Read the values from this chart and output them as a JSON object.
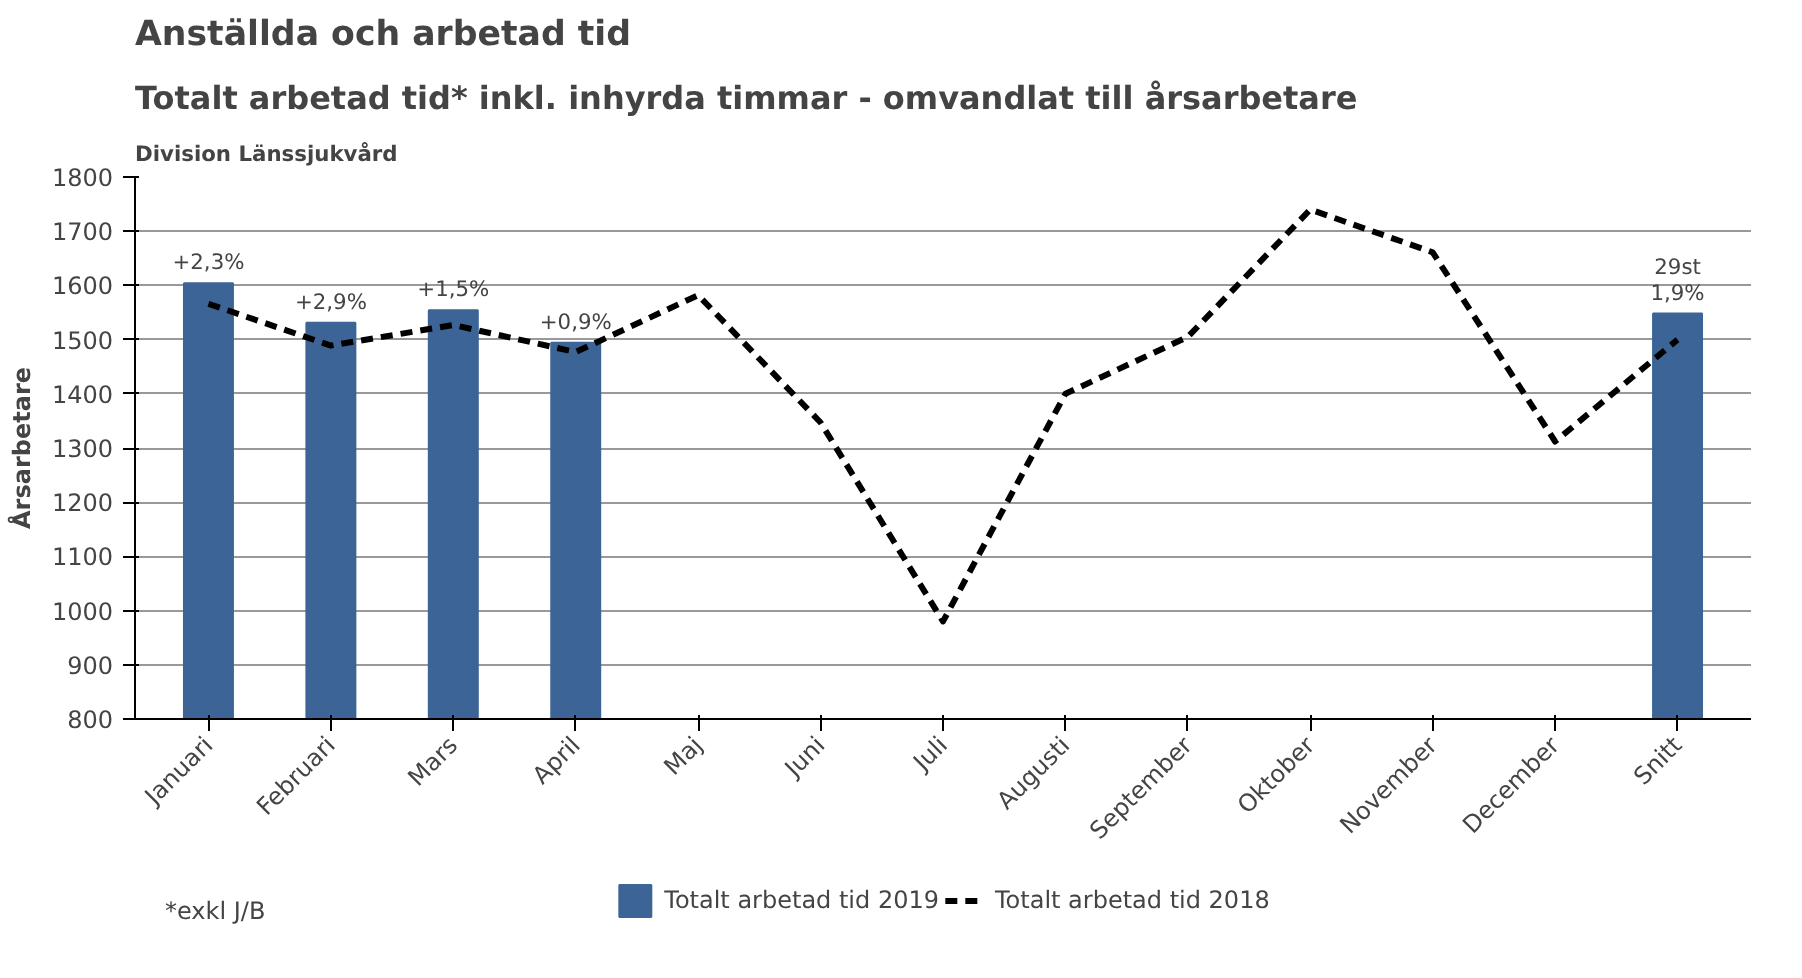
{
  "chart_data": {
    "type": "bar",
    "title": "Totalt arbetad tid* inkl. inhyrda timmar - omvandlat till årsarbetare",
    "subtitle": "Division Länssjukvård",
    "ylabel": "Årsarbetare",
    "annotations": [
      "Anställda och arbetad tid",
      "*exkl J/B",
      {
        "text": "+2,3%",
        "x": "Januari",
        "y": 1604
      },
      {
        "text": "+2,9%",
        "x": "Februari",
        "y": 1531
      },
      {
        "text": "+1,5%",
        "x": "Mars",
        "y": 1554
      },
      {
        "text": "+0,9%",
        "x": "April",
        "y": 1494
      },
      {
        "text": "1,9%",
        "x": "Snitt",
        "y": 1548
      },
      {
        "text": "29st",
        "x": "Snitt",
        "y": 1548
      }
    ],
    "categories": [
      "Januari",
      "Februari",
      "Mars",
      "April",
      "Maj",
      "Juni",
      "Juli",
      "Augusti",
      "September",
      "Oktober",
      "November",
      "December",
      "Snitt"
    ],
    "series": [
      {
        "name": "Totalt arbetad tid 2019",
        "color": "#3c6496",
        "values": [
          1604,
          1531,
          1554,
          1494,
          null,
          null,
          null,
          null,
          null,
          null,
          null,
          null,
          1548
        ]
      },
      {
        "name": "Totalt arbetad tid 2018",
        "type": "line",
        "color": "#000000",
        "line_style": "dashed",
        "values": [
          1566,
          1489,
          1527,
          1477,
          1582,
          1347,
          980,
          1400,
          1505,
          1740,
          1661,
          1312,
          1500
        ]
      }
    ],
    "ylim": [
      800,
      1800
    ],
    "yticks": [
      800,
      900,
      1000,
      1100,
      1200,
      1300,
      1400,
      1500,
      1600,
      1700,
      1800
    ],
    "grid": "y",
    "legend": "bottom"
  }
}
